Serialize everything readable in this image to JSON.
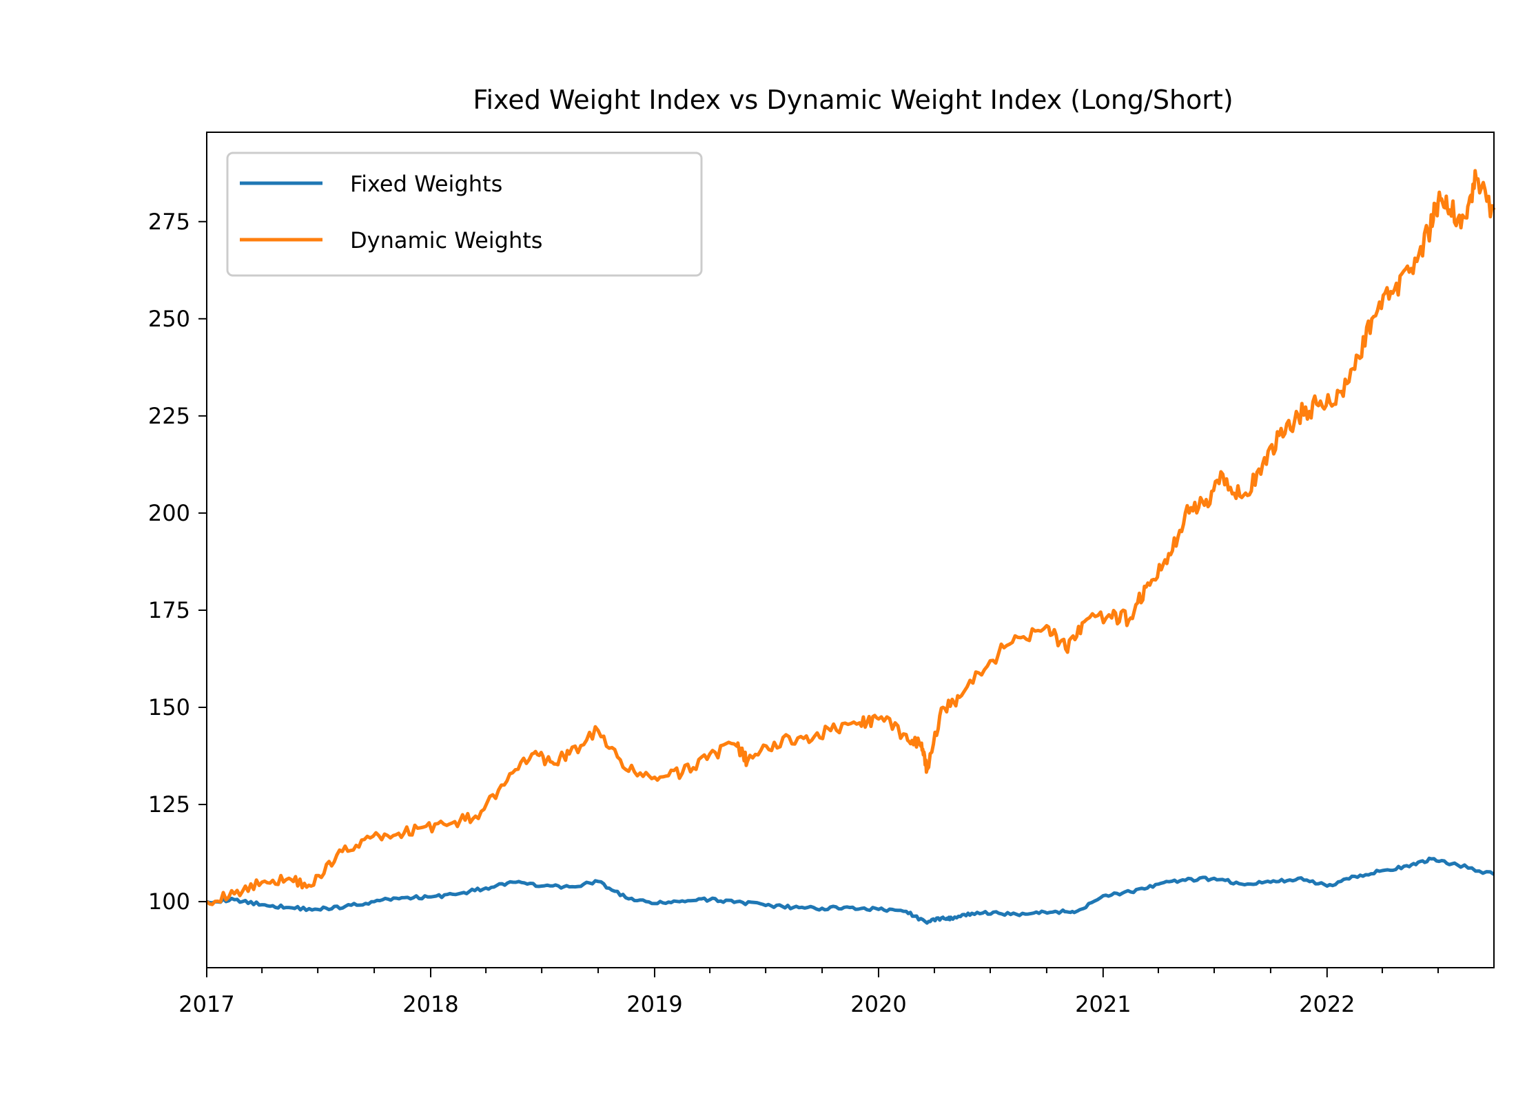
{
  "chart_data": {
    "type": "line",
    "title": "Fixed Weight Index vs Dynamic Weight Index (Long/Short)",
    "xlabel": "",
    "ylabel": "",
    "x_axis": {
      "type": "date",
      "range": [
        "2017-01-01",
        "2022-09-30"
      ],
      "tick_labels": [
        "2017",
        "2018",
        "2019",
        "2020",
        "2021",
        "2022"
      ]
    },
    "ylim": [
      83,
      298
    ],
    "y_ticks": [
      100,
      125,
      150,
      175,
      200,
      225,
      250,
      275
    ],
    "grid": false,
    "legend": {
      "placement": "upper-left",
      "entries": [
        "Fixed Weights",
        "Dynamic Weights"
      ]
    },
    "series": [
      {
        "name": "Fixed Weights",
        "color": "#1f77b4",
        "x": [
          "2017-01-01",
          "2017-02-15",
          "2017-04-01",
          "2017-05-15",
          "2017-07-01",
          "2017-08-15",
          "2017-10-01",
          "2017-11-15",
          "2018-01-01",
          "2018-02-15",
          "2018-04-01",
          "2018-05-15",
          "2018-07-01",
          "2018-08-15",
          "2018-10-01",
          "2018-11-15",
          "2019-01-01",
          "2019-02-15",
          "2019-04-01",
          "2019-05-15",
          "2019-07-01",
          "2019-08-15",
          "2019-10-01",
          "2019-11-15",
          "2020-01-01",
          "2020-02-15",
          "2020-03-20",
          "2020-04-15",
          "2020-05-01",
          "2020-06-01",
          "2020-07-15",
          "2020-09-01",
          "2020-10-15",
          "2020-11-15",
          "2021-01-01",
          "2021-02-15",
          "2021-04-01",
          "2021-05-15",
          "2021-07-01",
          "2021-08-15",
          "2021-10-01",
          "2021-11-15",
          "2022-01-01",
          "2022-02-15",
          "2022-04-01",
          "2022-05-15",
          "2022-06-20",
          "2022-08-01",
          "2022-09-30"
        ],
        "values": [
          100.0,
          100.5,
          99.2,
          98.5,
          98.0,
          98.8,
          100.0,
          101.0,
          101.2,
          102.0,
          103.5,
          105.0,
          104.0,
          103.8,
          105.2,
          101.0,
          99.5,
          100.2,
          100.5,
          100.0,
          99.0,
          98.5,
          98.3,
          98.5,
          98.0,
          97.5,
          94.5,
          96.0,
          95.5,
          97.0,
          97.0,
          96.8,
          97.5,
          97.2,
          101.5,
          102.5,
          104.5,
          105.5,
          106.0,
          104.5,
          105.0,
          106.0,
          104.0,
          106.5,
          108.0,
          109.0,
          111.0,
          109.5,
          107.0
        ]
      },
      {
        "name": "Dynamic Weights",
        "color": "#ff7f0e",
        "x": [
          "2017-01-01",
          "2017-02-15",
          "2017-04-01",
          "2017-05-15",
          "2017-06-20",
          "2017-08-01",
          "2017-09-15",
          "2017-11-01",
          "2017-12-15",
          "2018-02-01",
          "2018-03-15",
          "2018-05-01",
          "2018-06-15",
          "2018-07-15",
          "2018-08-15",
          "2018-10-01",
          "2018-11-15",
          "2019-01-01",
          "2019-02-15",
          "2019-04-01",
          "2019-05-15",
          "2019-06-01",
          "2019-07-15",
          "2019-09-01",
          "2019-10-15",
          "2019-12-01",
          "2020-01-01",
          "2020-02-15",
          "2020-03-10",
          "2020-03-20",
          "2020-04-15",
          "2020-05-15",
          "2020-07-01",
          "2020-08-15",
          "2020-10-01",
          "2020-11-01",
          "2020-12-01",
          "2021-01-15",
          "2021-02-15",
          "2021-03-15",
          "2021-04-15",
          "2021-05-15",
          "2021-06-15",
          "2021-07-15",
          "2021-08-15",
          "2021-09-15",
          "2021-10-15",
          "2021-11-15",
          "2021-12-15",
          "2022-01-15",
          "2022-02-15",
          "2022-03-15",
          "2022-04-15",
          "2022-05-15",
          "2022-06-15",
          "2022-07-01",
          "2022-07-20",
          "2022-08-15",
          "2022-09-01",
          "2022-09-30"
        ],
        "values": [
          100.0,
          102.0,
          105.0,
          106.0,
          104.0,
          112.0,
          116.0,
          117.0,
          119.0,
          120.0,
          122.0,
          130.0,
          138.0,
          136.0,
          138.0,
          144.0,
          134.0,
          132.0,
          133.0,
          138.0,
          140.0,
          136.0,
          141.0,
          142.0,
          144.0,
          146.0,
          147.0,
          143.0,
          140.0,
          134.0,
          150.0,
          153.0,
          162.0,
          168.0,
          171.0,
          165.0,
          172.0,
          173.0,
          173.0,
          182.0,
          187.0,
          200.0,
          202.0,
          210.0,
          204.0,
          210.0,
          220.0,
          225.0,
          228.0,
          228.0,
          237.0,
          250.0,
          257.0,
          262.0,
          272.0,
          280.0,
          278.0,
          276.0,
          286.0,
          278.0
        ]
      }
    ]
  }
}
